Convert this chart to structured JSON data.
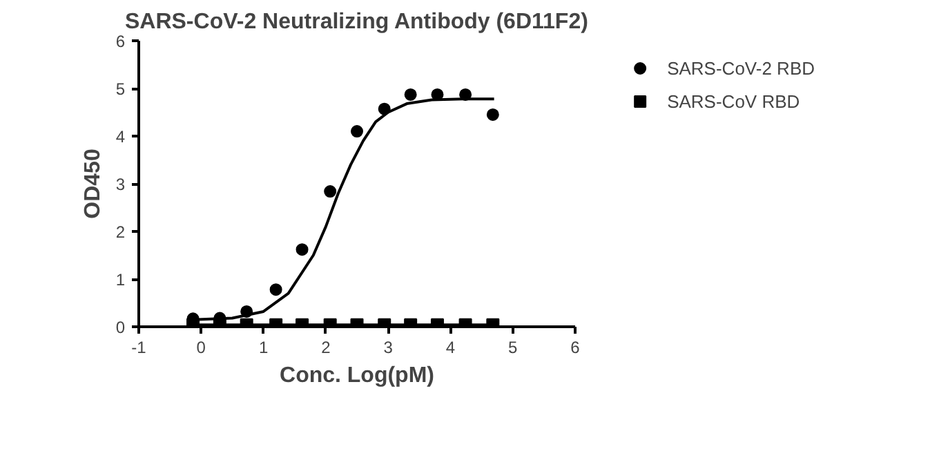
{
  "chart_data": {
    "type": "scatter",
    "title": "SARS-CoV-2 Neutralizing Antibody (6D11F2)",
    "xlabel": "Conc. Log(pM)",
    "ylabel": "OD450",
    "xlim": [
      -1,
      6
    ],
    "xticks": [
      -1,
      0,
      1,
      2,
      3,
      4,
      5,
      6
    ],
    "ylim": [
      0,
      6
    ],
    "yticks": [
      0,
      1,
      2,
      3,
      4,
      5,
      6
    ],
    "grid": false,
    "legend": "top right",
    "series": [
      {
        "name": "SARS-CoV-2 RBD",
        "color": "#000000",
        "marker": "circle",
        "x": [
          -0.13,
          0.3,
          0.73,
          1.2,
          1.62,
          2.07,
          2.5,
          2.94,
          3.36,
          3.79,
          4.24,
          4.68
        ],
        "values": [
          0.17,
          0.18,
          0.32,
          0.78,
          1.62,
          2.84,
          4.1,
          4.57,
          4.87,
          4.87,
          4.87,
          4.45
        ]
      },
      {
        "name": "SARS-CoV RBD",
        "color": "#000000",
        "marker": "square",
        "x": [
          -0.13,
          0.3,
          0.73,
          1.2,
          1.62,
          2.07,
          2.5,
          2.94,
          3.36,
          3.79,
          4.24,
          4.68
        ],
        "values": [
          0.04,
          0.04,
          0.04,
          0.04,
          0.04,
          0.04,
          0.04,
          0.04,
          0.04,
          0.04,
          0.04,
          0.04
        ]
      },
      {
        "type": "line",
        "color": "#000000",
        "x": [
          -0.13,
          0.5,
          1.0,
          1.4,
          1.8,
          2.0,
          2.2,
          2.4,
          2.6,
          2.8,
          3.0,
          3.3,
          3.7,
          4.2,
          4.7
        ],
        "values": [
          0.15,
          0.18,
          0.32,
          0.7,
          1.5,
          2.1,
          2.8,
          3.4,
          3.9,
          4.3,
          4.5,
          4.68,
          4.76,
          4.78,
          4.78
        ]
      },
      {
        "type": "line",
        "color": "#000000",
        "x": [
          -0.13,
          4.68
        ],
        "values": [
          0.04,
          0.04
        ]
      }
    ]
  }
}
